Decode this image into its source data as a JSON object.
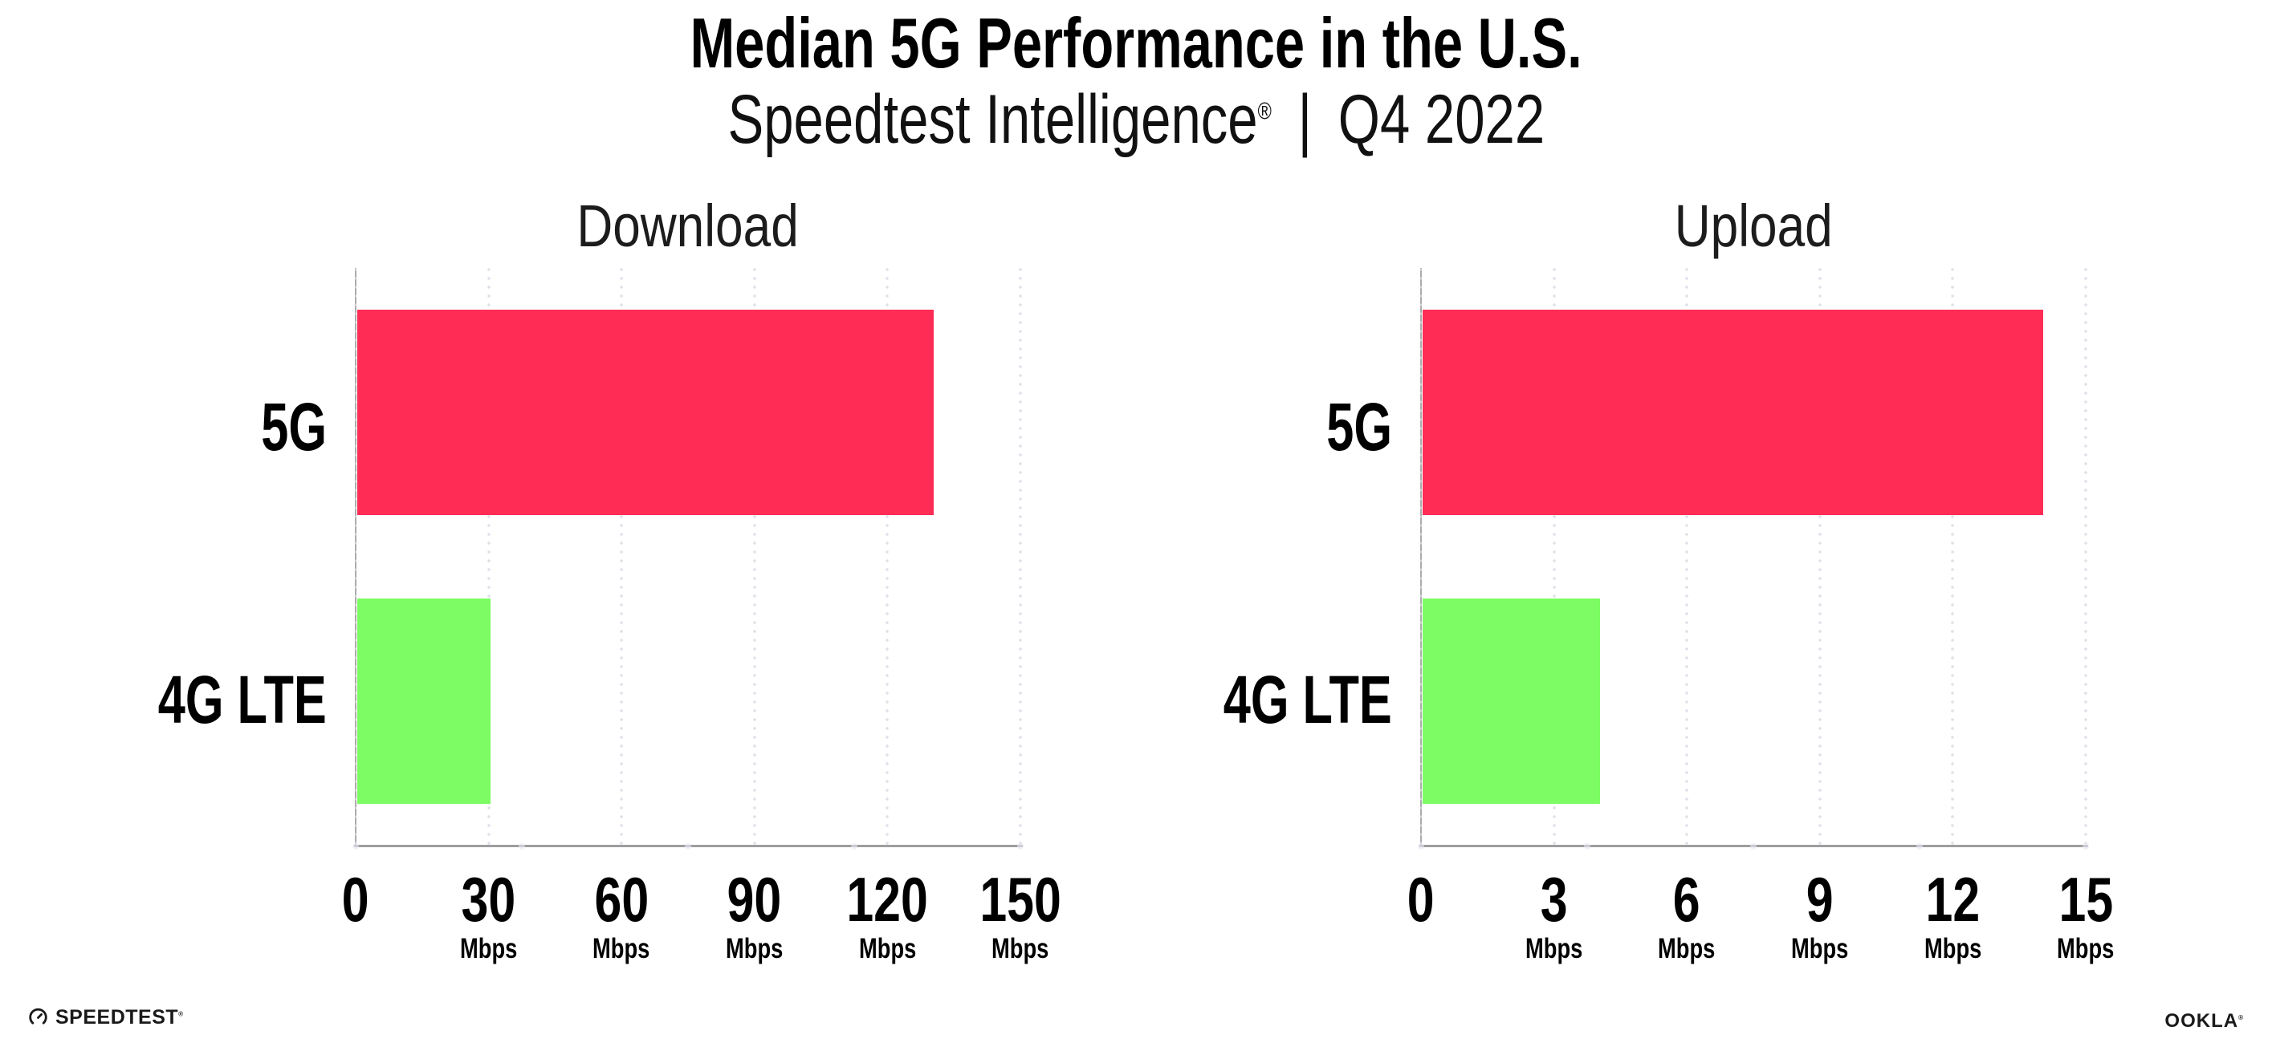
{
  "title": "Median 5G Performance in the U.S.",
  "subtitle": {
    "brand": "Speedtest Intelligence",
    "registered": "®",
    "separator": "|",
    "period": "Q4 2022"
  },
  "footer": {
    "speedtest_label": "SPEEDTEST",
    "speedtest_mark": "®",
    "ookla_label": "OOKLA",
    "ookla_mark": "®"
  },
  "colors": {
    "bar_5g": "#ff2d55",
    "bar_4g_lte": "#7dfc64",
    "axis": "#9e9e9e",
    "grid_dot": "#e0e0ea",
    "axis_dot": "#e9e9f2",
    "text": "#111111"
  },
  "chart_data": [
    {
      "type": "bar",
      "orientation": "horizontal",
      "title": "Download",
      "categories": [
        "5G",
        "4G LTE"
      ],
      "values": [
        130,
        30
      ],
      "xlim": [
        0,
        150
      ],
      "xticks": [
        0,
        30,
        60,
        90,
        120,
        150
      ],
      "tick_unit": "Mbps",
      "grid": "dotted-vertical",
      "legend": "none"
    },
    {
      "type": "bar",
      "orientation": "horizontal",
      "title": "Upload",
      "categories": [
        "5G",
        "4G LTE"
      ],
      "values": [
        14,
        4
      ],
      "xlim": [
        0,
        15
      ],
      "xticks": [
        0,
        3,
        6,
        9,
        12,
        15
      ],
      "tick_unit": "Mbps",
      "grid": "dotted-vertical",
      "legend": "none"
    }
  ]
}
